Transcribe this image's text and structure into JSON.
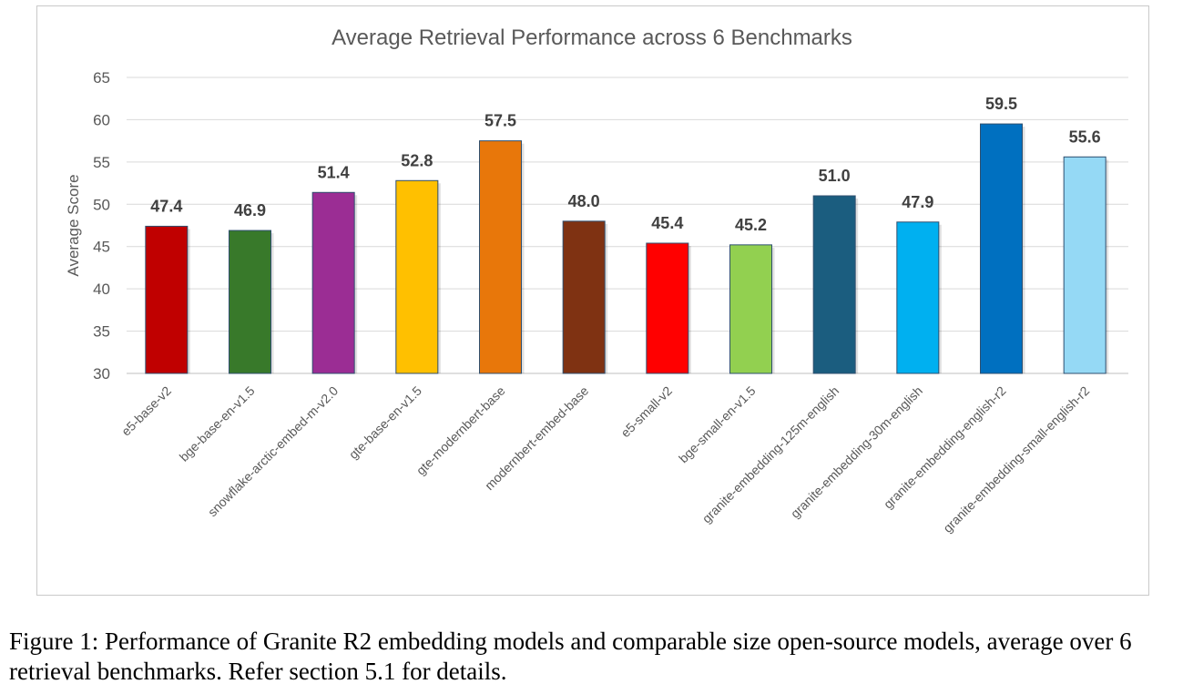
{
  "chart_data": {
    "type": "bar",
    "title": "Average Retrieval Performance across 6 Benchmarks",
    "xlabel": "",
    "ylabel": "Average Score",
    "ylim": [
      30,
      65
    ],
    "yticks": [
      30,
      35,
      40,
      45,
      50,
      55,
      60,
      65
    ],
    "grid": true,
    "categories": [
      "e5-base-v2",
      "bge-base-en-v1.5",
      "snowflake-arctic-embed-m-v2.0",
      "gte-base-en-v1.5",
      "gte-modernbert-base",
      "modernbert-embed-base",
      "e5-small-v2",
      "bge-small-en-v1.5",
      "granite-embedding-125m-english",
      "granite-embedding-30m-english",
      "granite-embedding-english-r2",
      "granite-embedding-small-english-r2"
    ],
    "values": [
      47.4,
      46.9,
      51.4,
      52.8,
      57.5,
      48.0,
      45.4,
      45.2,
      51.0,
      47.9,
      59.5,
      55.6
    ],
    "data_labels": [
      "47.4",
      "46.9",
      "51.4",
      "52.8",
      "57.5",
      "48.0",
      "45.4",
      "45.2",
      "51.0",
      "47.9",
      "59.5",
      "55.6"
    ],
    "colors": [
      "#c00000",
      "#38792a",
      "#9b2d94",
      "#ffc000",
      "#e8770a",
      "#7f3212",
      "#ff0000",
      "#92d050",
      "#1b5d7f",
      "#00b0f0",
      "#0070c0",
      "#95d9f5"
    ]
  },
  "caption": {
    "text": "Figure 1: Performance of Granite R2 embedding models and comparable size open-source models, average over 6 retrieval benchmarks. Refer section 5.1 for details."
  }
}
